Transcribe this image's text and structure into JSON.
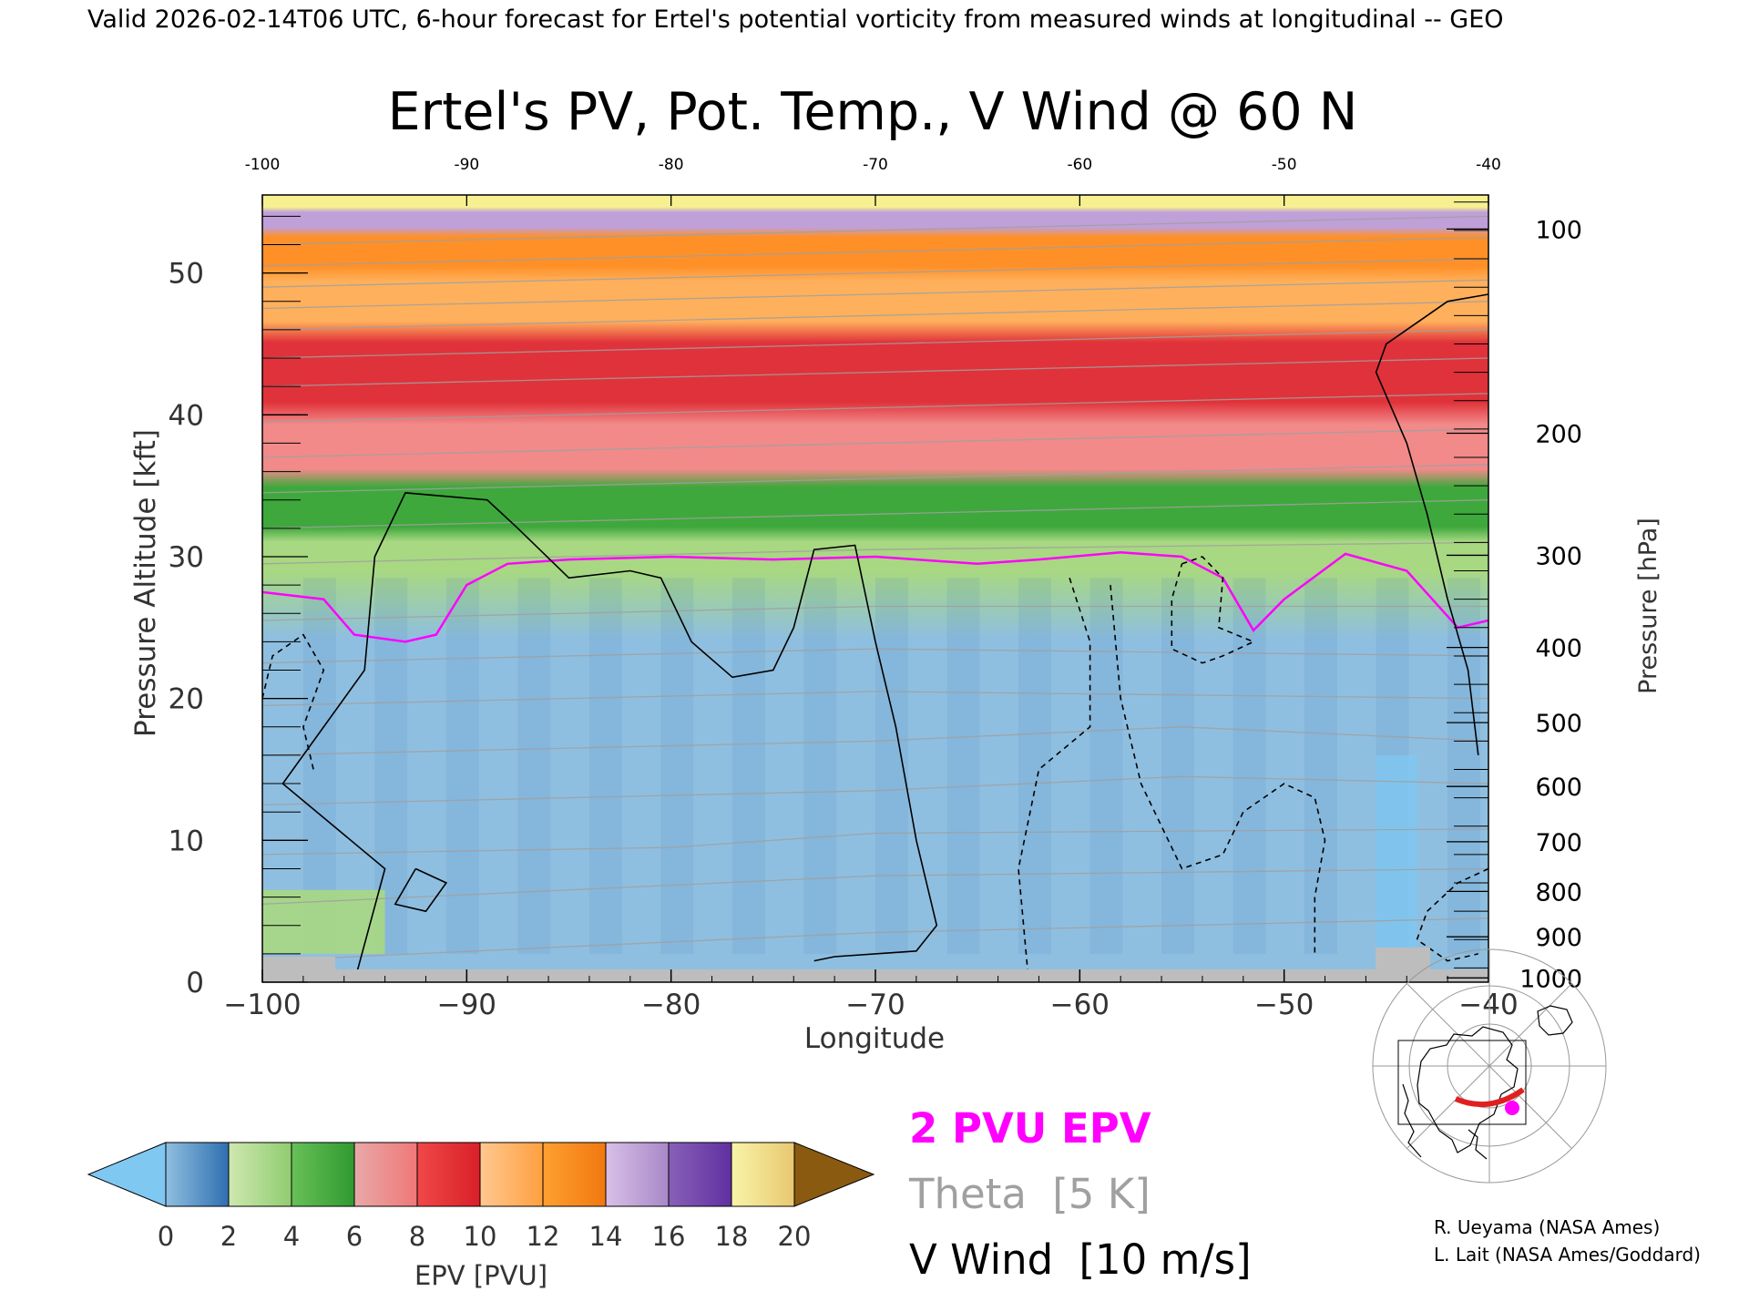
{
  "header": {
    "valid_line": "Valid 2026-02-14T06 UTC, 6-hour forecast for Ertel's potential vorticity from measured winds at longitudinal -- GEO"
  },
  "chart_data": {
    "type": "heatmap",
    "title": "Ertel's PV, Pot. Temp., V Wind @ 60 N",
    "xlabel": "Longitude",
    "ylabel_left": "Pressure Altitude [kft]",
    "ylabel_right": "Pressure [hPa]",
    "xlim": [
      -100,
      -40
    ],
    "ylim": [
      0,
      55.5
    ],
    "x_ticks": [
      -100,
      -90,
      -80,
      -70,
      -60,
      -50,
      -40
    ],
    "x_tick_labels": [
      "−100",
      "−90",
      "−80",
      "−70",
      "−60",
      "−50",
      "−40"
    ],
    "top_tick_labels": [
      "-100",
      "-90",
      "-80",
      "-70",
      "-60",
      "-50",
      "-40"
    ],
    "y_ticks_kft": [
      0,
      10,
      20,
      30,
      40,
      50
    ],
    "pressure_ticks": [
      {
        "hpa": 100,
        "kft": 53.1
      },
      {
        "hpa": 200,
        "kft": 38.7
      },
      {
        "hpa": 300,
        "kft": 30.1
      },
      {
        "hpa": 400,
        "kft": 23.6
      },
      {
        "hpa": 500,
        "kft": 18.3
      },
      {
        "hpa": 600,
        "kft": 13.8
      },
      {
        "hpa": 700,
        "kft": 9.9
      },
      {
        "hpa": 800,
        "kft": 6.4
      },
      {
        "hpa": 900,
        "kft": 3.2
      },
      {
        "hpa": 1000,
        "kft": 0.3
      }
    ],
    "epv_layers": [
      {
        "range_pvu": [
          0,
          2
        ],
        "bottom_kft": 0,
        "top_kft": 28.5,
        "color": "#8fbfe0"
      },
      {
        "range_pvu": [
          2,
          4
        ],
        "bottom_kft": 28.5,
        "top_kft": 31.5,
        "color": "#a8d882"
      },
      {
        "range_pvu": [
          4,
          6
        ],
        "bottom_kft": 31.5,
        "top_kft": 35.5,
        "color": "#3ea83c"
      },
      {
        "range_pvu": [
          6,
          8
        ],
        "bottom_kft": 35.5,
        "top_kft": 40,
        "color": "#f28a8a"
      },
      {
        "range_pvu": [
          8,
          10
        ],
        "bottom_kft": 40,
        "top_kft": 46,
        "color": "#e0323a"
      },
      {
        "range_pvu": [
          10,
          12
        ],
        "bottom_kft": 46,
        "top_kft": 50,
        "color": "#ffb05c"
      },
      {
        "range_pvu": [
          12,
          14
        ],
        "bottom_kft": 50,
        "top_kft": 53,
        "color": "#ff9028"
      },
      {
        "range_pvu": [
          14,
          16
        ],
        "bottom_kft": 53,
        "top_kft": 54.5,
        "color": "#c0a0d8"
      },
      {
        "range_pvu": [
          16,
          20
        ],
        "bottom_kft": 54.5,
        "top_kft": 55.5,
        "color": "#f6f090"
      }
    ],
    "pv2_contour": {
      "label": "2 PVU EPV",
      "color": "#ff00ff",
      "points": [
        [
          -100,
          27.5
        ],
        [
          -97,
          27
        ],
        [
          -95.5,
          24.5
        ],
        [
          -93,
          24
        ],
        [
          -91.5,
          24.5
        ],
        [
          -90,
          28
        ],
        [
          -88,
          29.5
        ],
        [
          -85,
          29.8
        ],
        [
          -80,
          30
        ],
        [
          -75,
          29.8
        ],
        [
          -70,
          30
        ],
        [
          -65,
          29.5
        ],
        [
          -62,
          29.8
        ],
        [
          -58,
          30.3
        ],
        [
          -55,
          30
        ],
        [
          -53,
          28.5
        ],
        [
          -51.5,
          24.8
        ],
        [
          -50,
          27
        ],
        [
          -47,
          30.2
        ],
        [
          -44,
          29
        ],
        [
          -41.5,
          25
        ],
        [
          -40,
          25.5
        ]
      ]
    },
    "theta_contours": {
      "label": "Theta",
      "interval_label": "[5 K]",
      "color": "#a0a0a0",
      "levels": [
        {
          "k": 270,
          "points": [
            [
              -100,
              1.5
            ],
            [
              -70,
              3.5
            ],
            [
              -40,
              4.5
            ]
          ]
        },
        {
          "k": 275,
          "points": [
            [
              -100,
              5.5
            ],
            [
              -70,
              7.5
            ],
            [
              -40,
              8
            ]
          ]
        },
        {
          "k": 280,
          "points": [
            [
              -100,
              9
            ],
            [
              -80,
              9.5
            ],
            [
              -70,
              10.5
            ],
            [
              -40,
              10.8
            ]
          ]
        },
        {
          "k": 285,
          "points": [
            [
              -100,
              12.5
            ],
            [
              -70,
              13.5
            ],
            [
              -55,
              14.5
            ],
            [
              -40,
              14
            ]
          ]
        },
        {
          "k": 290,
          "points": [
            [
              -100,
              16
            ],
            [
              -70,
              17
            ],
            [
              -55,
              18
            ],
            [
              -40,
              17
            ]
          ]
        },
        {
          "k": 295,
          "points": [
            [
              -100,
              19.5
            ],
            [
              -70,
              20.5
            ],
            [
              -40,
              20
            ]
          ]
        },
        {
          "k": 300,
          "points": [
            [
              -100,
              22.5
            ],
            [
              -70,
              23.5
            ],
            [
              -40,
              23
            ]
          ]
        },
        {
          "k": 305,
          "points": [
            [
              -100,
              25.5
            ],
            [
              -70,
              26.5
            ],
            [
              -40,
              26.5
            ]
          ]
        },
        {
          "k": 310,
          "points": [
            [
              -100,
              29.5
            ],
            [
              -70,
              30.5
            ],
            [
              -40,
              31
            ]
          ]
        },
        {
          "k": 320,
          "points": [
            [
              -100,
              32
            ],
            [
              -70,
              33
            ],
            [
              -40,
              34
            ]
          ]
        },
        {
          "k": 330,
          "points": [
            [
              -100,
              34.5
            ],
            [
              -70,
              35.5
            ],
            [
              -40,
              36.5
            ]
          ]
        },
        {
          "k": 340,
          "points": [
            [
              -100,
              37
            ],
            [
              -70,
              38
            ],
            [
              -40,
              39
            ]
          ]
        },
        {
          "k": 350,
          "points": [
            [
              -100,
              39.5
            ],
            [
              -70,
              40.5
            ],
            [
              -40,
              41.5
            ]
          ]
        },
        {
          "k": 360,
          "points": [
            [
              -100,
              42
            ],
            [
              -70,
              43
            ],
            [
              -40,
              44
            ]
          ]
        },
        {
          "k": 370,
          "points": [
            [
              -100,
              44
            ],
            [
              -70,
              45
            ],
            [
              -40,
              46
            ]
          ]
        },
        {
          "k": 380,
          "points": [
            [
              -100,
              46
            ],
            [
              -70,
              47
            ],
            [
              -40,
              48
            ]
          ]
        },
        {
          "k": 390,
          "points": [
            [
              -100,
              47.5
            ],
            [
              -70,
              48.5
            ],
            [
              -40,
              49.5
            ]
          ]
        },
        {
          "k": 400,
          "points": [
            [
              -100,
              49
            ],
            [
              -70,
              50
            ],
            [
              -40,
              51
            ]
          ]
        },
        {
          "k": 410,
          "points": [
            [
              -100,
              50.5
            ],
            [
              -70,
              51.5
            ],
            [
              -40,
              52.5
            ]
          ]
        },
        {
          "k": 420,
          "points": [
            [
              -100,
              52
            ],
            [
              -70,
              53
            ],
            [
              -40,
              54
            ]
          ]
        }
      ]
    },
    "v_wind_contours": {
      "label": "V Wind",
      "interval_label": "[10 m/s]",
      "color": "#000000",
      "lines": [
        {
          "value": 0,
          "dashed": false,
          "points": [
            [
              -95.5,
              0
            ],
            [
              -94,
              8
            ],
            [
              -99,
              14
            ],
            [
              -95,
              22
            ],
            [
              -94.5,
              30
            ],
            [
              -93,
              34.5
            ],
            [
              -89,
              34
            ],
            [
              -87.5,
              32
            ],
            [
              -85,
              28.5
            ],
            [
              -82,
              29
            ],
            [
              -80.5,
              28.5
            ],
            [
              -79,
              24
            ],
            [
              -77,
              21.5
            ],
            [
              -75,
              22
            ],
            [
              -74,
              25
            ],
            [
              -73,
              30.5
            ],
            [
              -71,
              30.8
            ],
            [
              -70,
              24
            ],
            [
              -69,
              18
            ],
            [
              -68,
              10
            ],
            [
              -67,
              4
            ],
            [
              -68,
              2.2
            ],
            [
              -72,
              1.8
            ],
            [
              -73,
              1.5
            ]
          ]
        },
        {
          "value": 0,
          "dashed": false,
          "points": [
            [
              -92.5,
              8
            ],
            [
              -91,
              7
            ],
            [
              -92,
              5
            ],
            [
              -93.5,
              5.5
            ],
            [
              -92.5,
              8
            ]
          ]
        },
        {
          "value": 0,
          "dashed": false,
          "points": [
            [
              -40,
              48.5
            ],
            [
              -42,
              48
            ],
            [
              -45,
              45
            ],
            [
              -45.5,
              43
            ],
            [
              -44,
              38
            ],
            [
              -43,
              33
            ],
            [
              -42,
              27
            ],
            [
              -41,
              22
            ],
            [
              -40.5,
              16
            ]
          ]
        },
        {
          "value": -10,
          "dashed": true,
          "points": [
            [
              -100,
              20
            ],
            [
              -99.5,
              23
            ],
            [
              -98,
              24.5
            ],
            [
              -97,
              22
            ],
            [
              -98,
              18
            ],
            [
              -97.5,
              15
            ]
          ]
        },
        {
          "value": -10,
          "dashed": true,
          "points": [
            [
              -60.5,
              28.5
            ],
            [
              -59.5,
              24
            ],
            [
              -59.5,
              18
            ],
            [
              -62,
              15
            ],
            [
              -63,
              8
            ],
            [
              -62.5,
              0
            ]
          ]
        },
        {
          "value": -10,
          "dashed": true,
          "points": [
            [
              -55,
              29.5
            ],
            [
              -54,
              30
            ],
            [
              -53,
              28.5
            ],
            [
              -53.2,
              25
            ],
            [
              -51.5,
              24
            ],
            [
              -53,
              23
            ],
            [
              -54,
              22.5
            ],
            [
              -55.5,
              23.5
            ],
            [
              -55.5,
              27
            ],
            [
              -55,
              29.5
            ]
          ]
        },
        {
          "value": -10,
          "dashed": true,
          "points": [
            [
              -58.5,
              28
            ],
            [
              -58,
              20
            ],
            [
              -57,
              14
            ],
            [
              -55,
              8
            ],
            [
              -53,
              9
            ],
            [
              -52,
              12
            ],
            [
              -50,
              14
            ],
            [
              -48.5,
              13
            ],
            [
              -48,
              10
            ],
            [
              -48.5,
              6
            ],
            [
              -48.5,
              2
            ]
          ]
        },
        {
          "value": 10,
          "dashed": true,
          "points": [
            [
              -40,
              8
            ],
            [
              -41.5,
              7
            ],
            [
              -43,
              5
            ],
            [
              -43.5,
              3
            ],
            [
              -42,
              1.5
            ],
            [
              -40.5,
              2
            ]
          ]
        }
      ]
    },
    "colorbar": {
      "label": "EPV [PVU]",
      "ticks": [
        "0",
        "2",
        "4",
        "6",
        "8",
        "10",
        "12",
        "14",
        "16",
        "18",
        "20"
      ],
      "min": 0,
      "max": 20,
      "under_color": "#7ec8f2",
      "over_color": "#8a5a10",
      "segments": [
        {
          "from": 0,
          "to": 2,
          "color_a": "#8fbfe0",
          "color_b": "#2f6fb0"
        },
        {
          "from": 2,
          "to": 4,
          "color_a": "#cfe8b0",
          "color_b": "#90cc70"
        },
        {
          "from": 4,
          "to": 6,
          "color_a": "#68c058",
          "color_b": "#2f9a30"
        },
        {
          "from": 6,
          "to": 8,
          "color_a": "#e8a8a8",
          "color_b": "#f07878"
        },
        {
          "from": 8,
          "to": 10,
          "color_a": "#f04848",
          "color_b": "#d82028"
        },
        {
          "from": 10,
          "to": 12,
          "color_a": "#ffc890",
          "color_b": "#ffa040"
        },
        {
          "from": 12,
          "to": 14,
          "color_a": "#ffa030",
          "color_b": "#f07810"
        },
        {
          "from": 14,
          "to": 16,
          "color_a": "#d8c0e8",
          "color_b": "#a888c8"
        },
        {
          "from": 16,
          "to": 18,
          "color_a": "#8860b8",
          "color_b": "#6030a0"
        },
        {
          "from": 18,
          "to": 20,
          "color_a": "#f8f4a8",
          "color_b": "#e8c870"
        }
      ]
    }
  },
  "legend": {
    "pv2": "2 PVU EPV",
    "theta": "Theta",
    "theta_interval": "[5 K]",
    "vwind": "V Wind",
    "vwind_interval": "[10 m/s]",
    "pv2_color": "#ff00ff",
    "theta_color": "#a0a0a0"
  },
  "credits": {
    "line1": "R. Ueyama (NASA Ames)",
    "line2": "L. Lait (NASA Ames/Goddard)"
  },
  "inset_map": {
    "icon": "globe-map-icon",
    "track_color": "#e02020",
    "marker_color": "#ff00ff"
  }
}
